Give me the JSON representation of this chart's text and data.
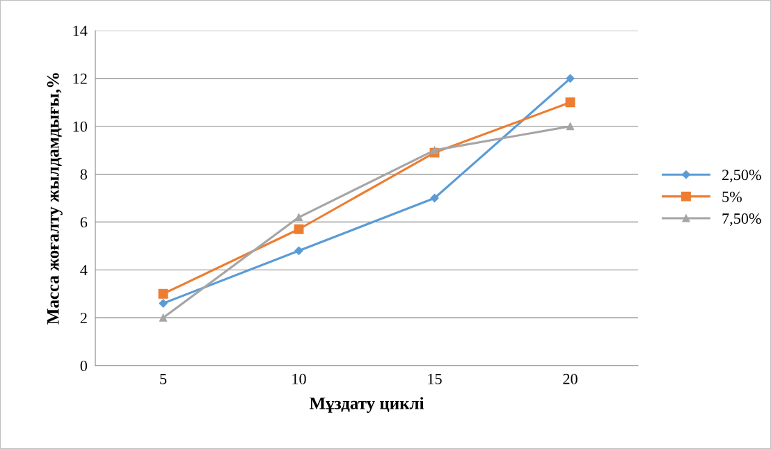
{
  "chart_data": {
    "type": "line",
    "xlabel": "Мұздату циклі",
    "ylabel": "Масса жоғалту жылдамдығы,%",
    "categories": [
      "5",
      "10",
      "15",
      "20"
    ],
    "series": [
      {
        "name": "2,50%",
        "color": "#5b9bd5",
        "marker": "diamond",
        "values": [
          2.6,
          4.8,
          7,
          12
        ]
      },
      {
        "name": "5%",
        "color": "#ed7d31",
        "marker": "square",
        "values": [
          3,
          5.7,
          8.9,
          11
        ]
      },
      {
        "name": "7,50%",
        "color": "#a5a5a5",
        "marker": "triangle",
        "values": [
          2,
          6.2,
          9,
          10
        ]
      }
    ],
    "ylim": [
      0,
      14
    ],
    "yticks": [
      0,
      2,
      4,
      6,
      8,
      10,
      12,
      14
    ],
    "grid": "y",
    "legend": "right",
    "line_style": "solid"
  }
}
